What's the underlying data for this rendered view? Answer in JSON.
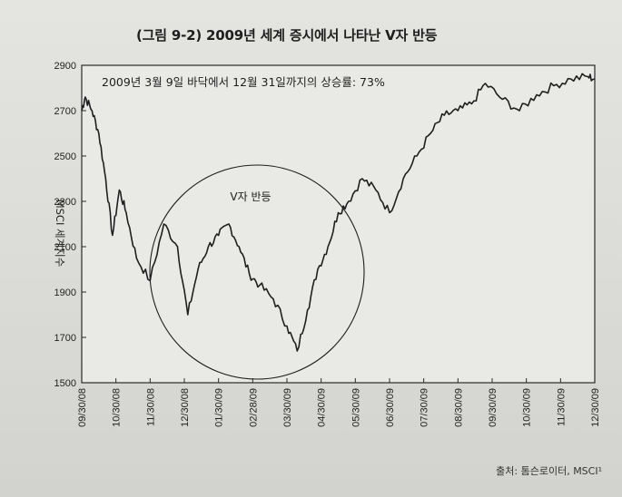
{
  "title": "(그림 9-2) 2009년 세계 증시에서 나타난 V자 반등",
  "source": "출처: 톰슨로이터, MSCI¹",
  "chart_data": {
    "type": "line",
    "ylabel": "MSCI 세계지수",
    "ylim": [
      1500,
      2900
    ],
    "yticks": [
      "1500",
      "1700",
      "1900",
      "2100",
      "2300",
      "2500",
      "2700",
      "2900"
    ],
    "xticks": [
      "09/30/08",
      "10/30/08",
      "11/30/08",
      "12/30/08",
      "01/30/09",
      "02/28/09",
      "03/30/09",
      "04/30/09",
      "05/30/09",
      "06/30/09",
      "07/30/09",
      "08/30/09",
      "09/30/09",
      "10/30/09",
      "11/30/09",
      "12/30/09"
    ],
    "grid": false,
    "legend": "none",
    "line_color": "#1f1f1f",
    "annotations": {
      "note": "2009년 3월 9일 바닥에서 12월 31일까지의 상승률: 73%",
      "circle_label": "V자 반등"
    },
    "x": [
      0.0,
      0.1,
      0.3,
      0.5,
      0.7,
      0.9,
      1.1,
      1.3,
      1.6,
      2.0,
      2.4,
      2.8,
      3.1,
      3.4,
      3.7,
      4.0,
      4.3,
      4.6,
      4.9,
      5.2,
      5.6,
      6.0,
      6.3,
      6.6,
      6.9,
      7.2,
      7.5,
      7.8,
      8.2,
      8.6,
      9.0,
      9.4,
      9.8,
      10.2,
      10.6,
      11.0,
      11.4,
      11.8,
      12.3,
      12.8,
      13.3,
      13.8,
      14.3,
      14.8,
      15.0
    ],
    "y": [
      2700,
      2760,
      2700,
      2600,
      2400,
      2150,
      2350,
      2250,
      2050,
      1950,
      2200,
      2100,
      1800,
      2000,
      2100,
      2150,
      2200,
      2100,
      1980,
      1930,
      1870,
      1750,
      1640,
      1820,
      2000,
      2100,
      2250,
      2300,
      2400,
      2350,
      2250,
      2400,
      2500,
      2600,
      2680,
      2700,
      2730,
      2820,
      2750,
      2700,
      2770,
      2810,
      2840,
      2850,
      2840
    ]
  }
}
